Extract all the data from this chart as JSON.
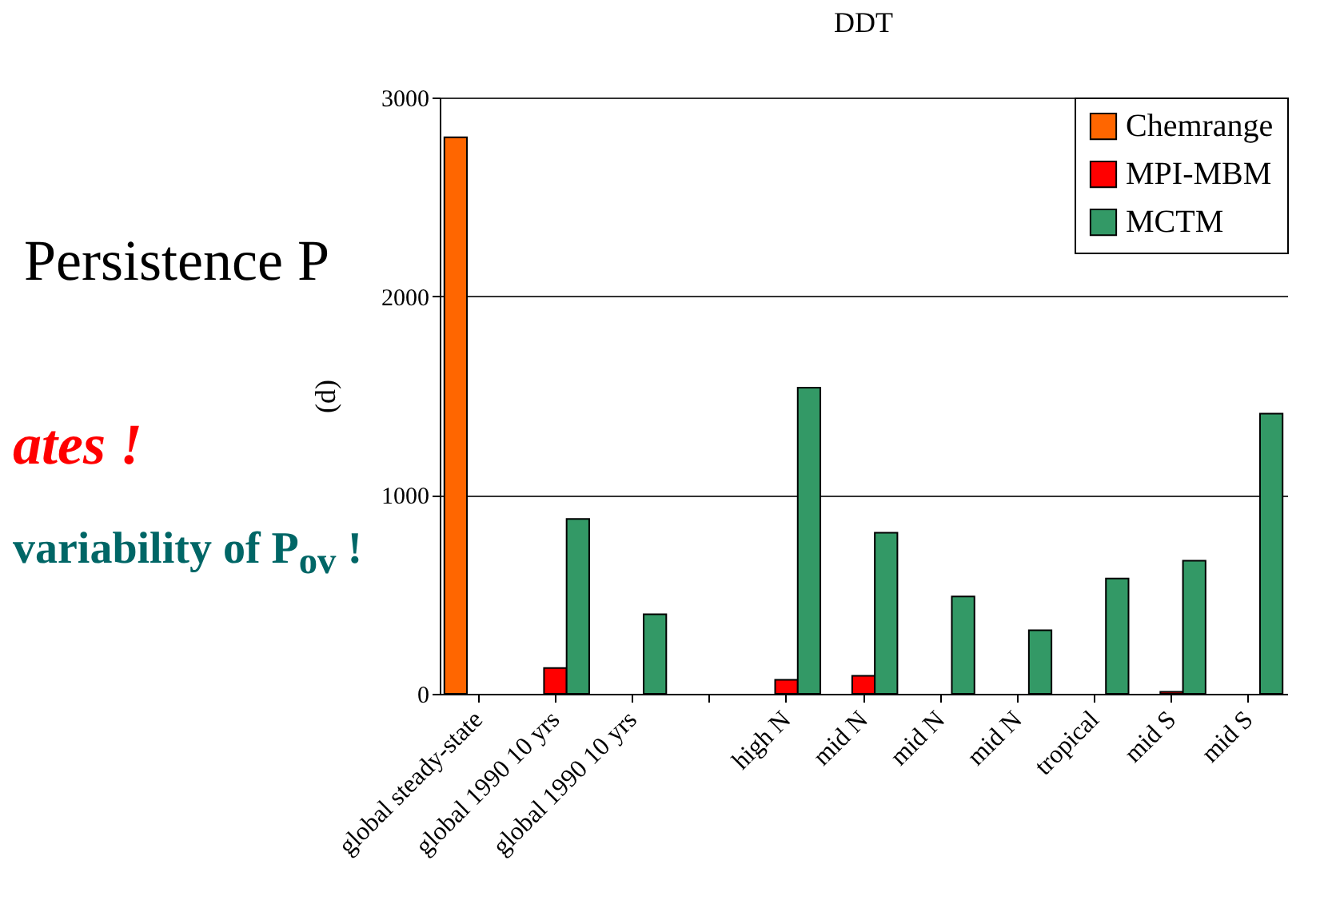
{
  "chart_data": {
    "type": "bar",
    "title": "DDT",
    "ylabel": "(d)",
    "categories": [
      "global steady-state",
      "global 1990 10 yrs",
      "global 1990 10 yrs",
      null,
      "high N",
      "mid N",
      "mid N",
      "mid N",
      "tropical",
      "mid S",
      "mid S"
    ],
    "series": [
      {
        "name": "Chemrange",
        "color": "#ff6600",
        "values": [
          2800,
          null,
          null,
          null,
          null,
          null,
          null,
          null,
          null,
          null,
          null
        ]
      },
      {
        "name": "MPI-MBM",
        "color": "#ff0000",
        "values": [
          null,
          130,
          null,
          null,
          70,
          90,
          null,
          null,
          null,
          10,
          null
        ]
      },
      {
        "name": "MCTM",
        "color": "#339966",
        "values": [
          null,
          880,
          400,
          null,
          1540,
          810,
          490,
          320,
          580,
          670,
          1410
        ]
      }
    ],
    "ylim": [
      0,
      3000
    ],
    "yticks": [
      0,
      1000,
      2000,
      3000
    ],
    "grid": "y",
    "legend": "top right",
    "annotations": [
      "Persistence P",
      "ates !",
      "variability of P$_{ov}$ !"
    ]
  }
}
